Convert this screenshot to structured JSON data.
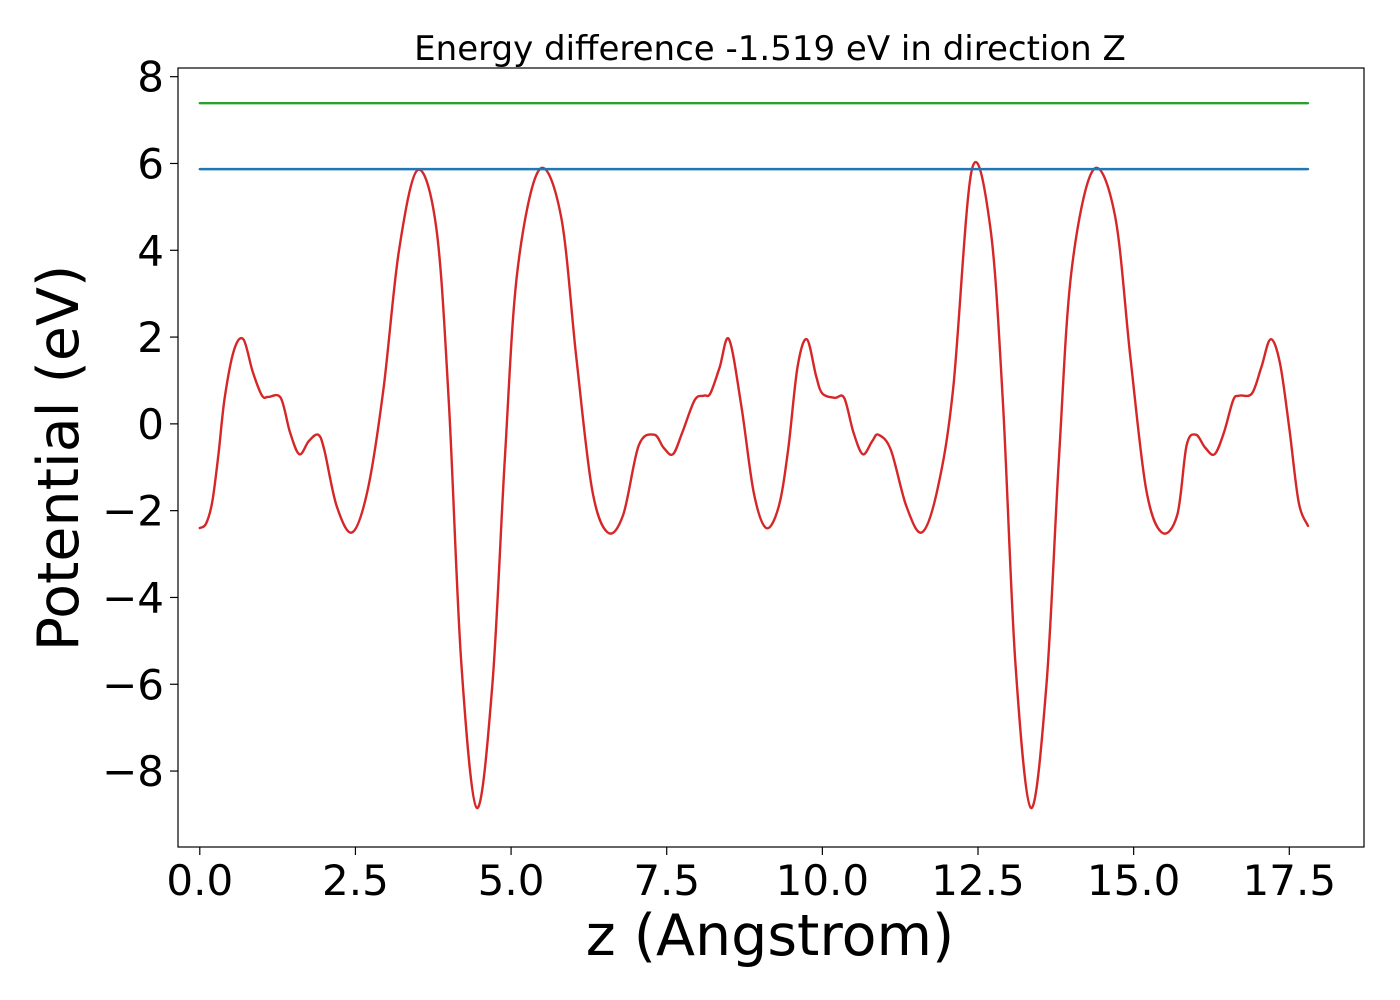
{
  "chart_data": {
    "type": "line",
    "title": "Energy difference -1.519 eV in direction Z",
    "xlabel": "z (Angstrom)",
    "ylabel": "Potential (eV)",
    "xlim": [
      -0.35,
      18.7
    ],
    "ylim": [
      -9.75,
      8.2
    ],
    "xticks": [
      0.0,
      2.5,
      5.0,
      7.5,
      10.0,
      12.5,
      15.0,
      17.5
    ],
    "xtick_labels": [
      "0.0",
      "2.5",
      "5.0",
      "7.5",
      "10.0",
      "12.5",
      "15.0",
      "17.5"
    ],
    "yticks": [
      -8,
      -6,
      -4,
      -2,
      0,
      2,
      4,
      6,
      8
    ],
    "ytick_labels": [
      "−8",
      "−6",
      "−4",
      "−2",
      "0",
      "2",
      "4",
      "6",
      "8"
    ],
    "grid": false,
    "legend": "none",
    "series": [
      {
        "color": "#d62728",
        "style": "curve",
        "x": [
          0.0,
          0.1,
          0.2,
          0.3,
          0.4,
          0.55,
          0.7,
          0.85,
          1.0,
          1.1,
          1.3,
          1.45,
          1.6,
          1.75,
          1.9,
          2.0,
          2.2,
          2.45,
          2.7,
          2.95,
          3.2,
          3.5,
          3.8,
          4.0,
          4.2,
          4.45,
          4.7,
          4.9,
          5.1,
          5.45,
          5.8,
          6.05,
          6.3,
          6.55,
          6.8,
          7.05,
          7.3,
          7.45,
          7.6,
          7.75,
          7.95,
          8.1,
          8.2,
          8.35,
          8.5,
          8.7,
          8.9,
          9.1,
          9.3,
          9.45,
          9.6,
          9.75,
          9.9,
          10.0,
          10.2,
          10.35,
          10.5,
          10.65,
          10.8,
          10.9,
          11.1,
          11.35,
          11.6,
          11.85,
          12.1,
          12.4,
          12.7,
          12.9,
          13.1,
          13.35,
          13.6,
          13.8,
          14.0,
          14.35,
          14.7,
          14.95,
          15.2,
          15.45,
          15.7,
          15.85,
          16.0,
          16.15,
          16.3,
          16.45,
          16.6,
          16.7,
          16.9,
          17.05,
          17.2,
          17.35,
          17.5,
          17.65,
          17.8
        ],
        "y": [
          -2.4,
          -2.3,
          -1.8,
          -0.7,
          0.6,
          1.7,
          1.95,
          1.2,
          0.65,
          0.62,
          0.6,
          -0.2,
          -0.7,
          -0.4,
          -0.25,
          -0.6,
          -1.9,
          -2.5,
          -1.5,
          0.8,
          4.0,
          5.85,
          4.5,
          0.5,
          -5.5,
          -8.85,
          -6.0,
          -0.8,
          3.5,
          5.85,
          4.8,
          1.5,
          -1.5,
          -2.5,
          -2.1,
          -0.5,
          -0.25,
          -0.55,
          -0.7,
          -0.2,
          0.55,
          0.65,
          0.7,
          1.3,
          1.95,
          0.4,
          -1.6,
          -2.4,
          -1.9,
          -0.6,
          1.3,
          1.95,
          1.1,
          0.7,
          0.6,
          0.6,
          -0.2,
          -0.7,
          -0.4,
          -0.25,
          -0.6,
          -1.9,
          -2.5,
          -1.5,
          0.8,
          5.85,
          4.5,
          0.5,
          -5.5,
          -8.85,
          -6.0,
          -0.8,
          3.5,
          5.85,
          4.8,
          1.5,
          -1.5,
          -2.5,
          -2.1,
          -0.5,
          -0.25,
          -0.55,
          -0.7,
          -0.2,
          0.55,
          0.65,
          0.7,
          1.3,
          1.95,
          1.4,
          -0.1,
          -1.8,
          -2.35
        ]
      },
      {
        "color": "#1f77b4",
        "style": "line",
        "x": [
          0.0,
          17.8
        ],
        "y": [
          5.87,
          5.87
        ]
      },
      {
        "color": "#2ca02c",
        "style": "line",
        "x": [
          0.0,
          17.8
        ],
        "y": [
          7.39,
          7.39
        ]
      }
    ]
  }
}
